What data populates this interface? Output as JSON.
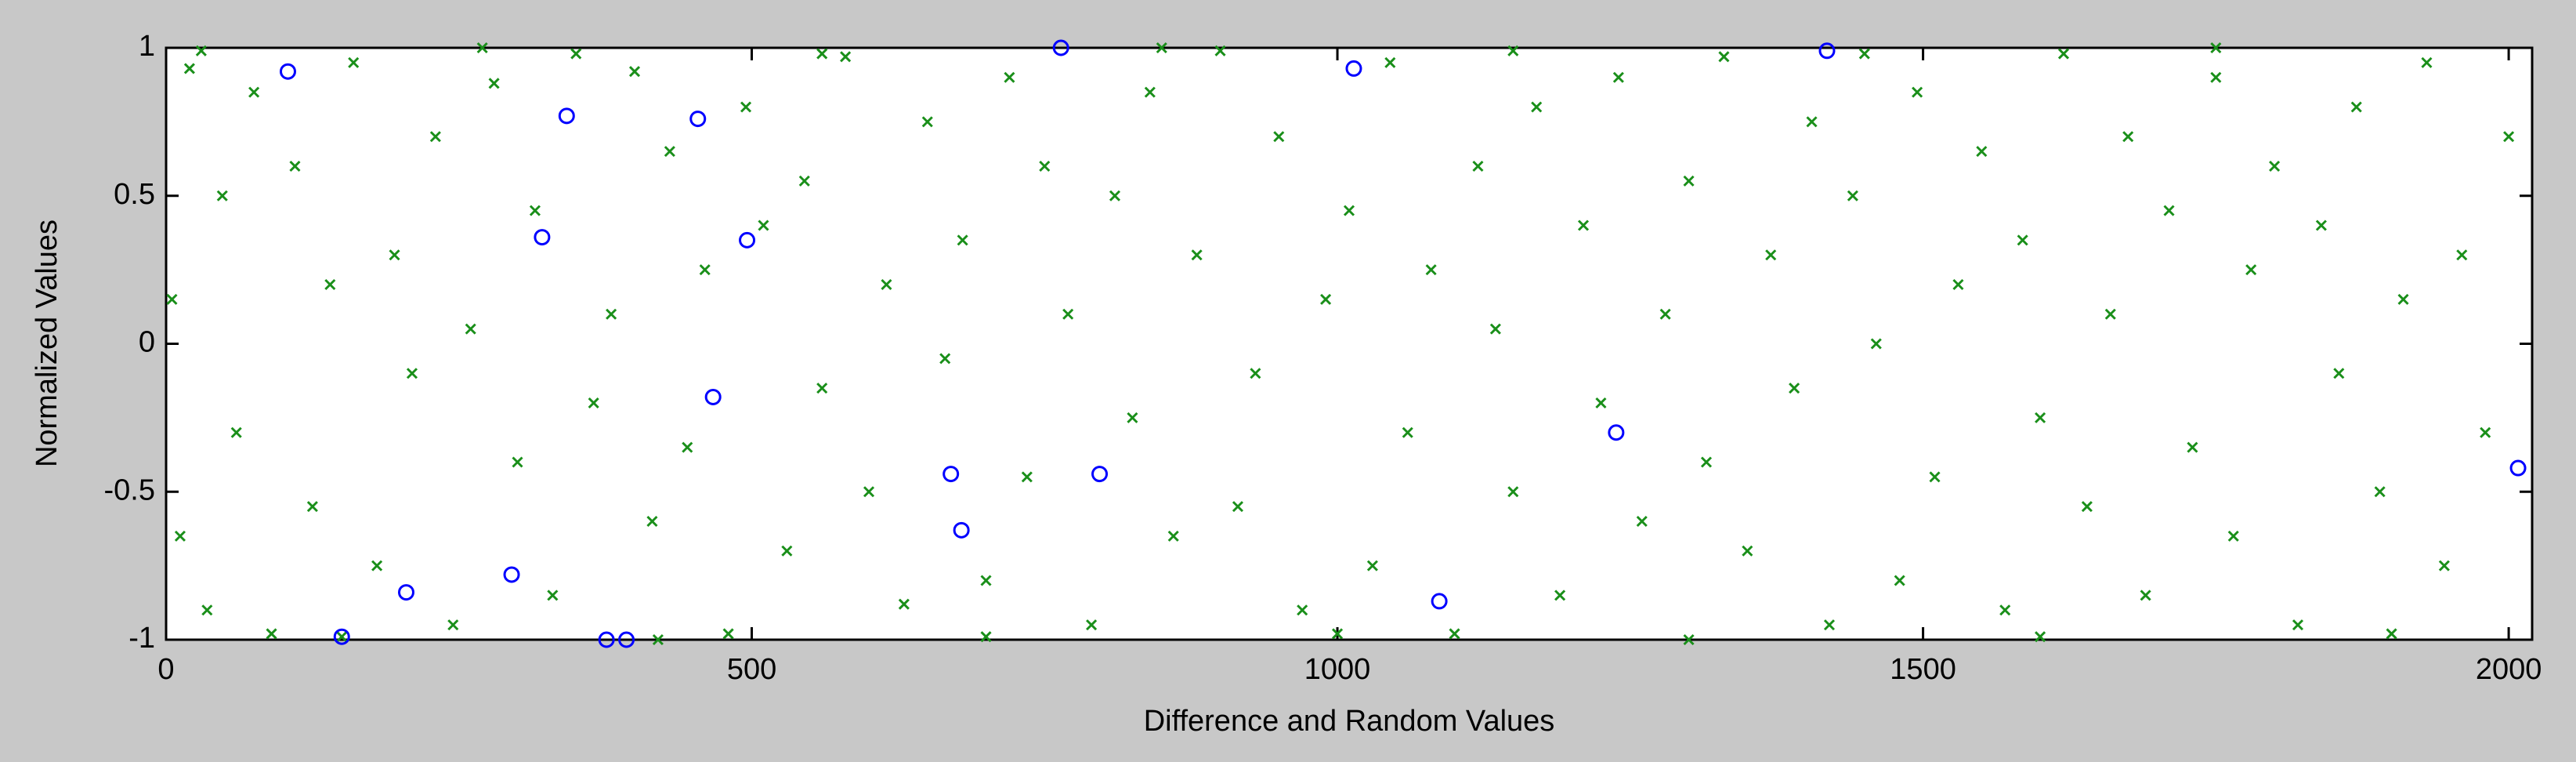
{
  "chart_data": {
    "type": "scatter",
    "xlabel": "Difference and Random Values",
    "ylabel": "Normalized Values",
    "xlim": [
      0,
      2020
    ],
    "ylim": [
      -1,
      1
    ],
    "xticks": [
      0,
      500,
      1000,
      1500,
      2000
    ],
    "yticks": [
      -1,
      -0.5,
      0,
      0.5,
      1
    ],
    "grid": false,
    "series": [
      {
        "color": "#1a8f1a",
        "marker": "x",
        "x": [
          5,
          12,
          20,
          35,
          48,
          60,
          75,
          90,
          110,
          125,
          140,
          160,
          180,
          195,
          210,
          230,
          245,
          260,
          280,
          300,
          315,
          330,
          350,
          365,
          380,
          400,
          415,
          430,
          445,
          460,
          480,
          495,
          510,
          530,
          545,
          560,
          580,
          600,
          615,
          630,
          650,
          665,
          680,
          700,
          720,
          735,
          750,
          770,
          790,
          810,
          825,
          840,
          860,
          880,
          900,
          915,
          930,
          950,
          970,
          990,
          1010,
          1030,
          1045,
          1060,
          1080,
          1100,
          1120,
          1135,
          1150,
          1170,
          1190,
          1210,
          1225,
          1240,
          1260,
          1280,
          1300,
          1315,
          1330,
          1350,
          1370,
          1390,
          1405,
          1420,
          1440,
          1460,
          1480,
          1495,
          1510,
          1530,
          1550,
          1570,
          1585,
          1600,
          1620,
          1640,
          1660,
          1675,
          1690,
          1710,
          1730,
          1750,
          1765,
          1780,
          1800,
          1820,
          1840,
          1855,
          1870,
          1890,
          1910,
          1930,
          1945,
          1960,
          1980,
          2000,
          30,
          150,
          270,
          420,
          560,
          700,
          850,
          1000,
          1150,
          1300,
          1450,
          1600,
          1750,
          1900
        ],
        "values": [
          0.15,
          -0.65,
          0.93,
          -0.9,
          0.5,
          -0.3,
          0.85,
          -0.98,
          0.6,
          -0.55,
          0.2,
          0.95,
          -0.75,
          0.3,
          -0.1,
          0.7,
          -0.95,
          0.05,
          0.88,
          -0.4,
          0.45,
          -0.85,
          0.98,
          -0.2,
          0.1,
          0.92,
          -0.6,
          0.65,
          -0.35,
          0.25,
          -0.98,
          0.8,
          0.4,
          -0.7,
          0.55,
          -0.15,
          0.97,
          -0.5,
          0.2,
          -0.88,
          0.75,
          -0.05,
          0.35,
          -0.8,
          0.9,
          -0.45,
          0.6,
          0.1,
          -0.95,
          0.5,
          -0.25,
          0.85,
          -0.65,
          0.3,
          0.99,
          -0.55,
          -0.1,
          0.7,
          -0.9,
          0.15,
          0.45,
          -0.75,
          0.95,
          -0.3,
          0.25,
          -0.98,
          0.6,
          0.05,
          -0.5,
          0.8,
          -0.85,
          0.4,
          -0.2,
          0.9,
          -0.6,
          0.1,
          0.55,
          -0.4,
          0.97,
          -0.7,
          0.3,
          -0.15,
          0.75,
          -0.95,
          0.5,
          0.0,
          -0.8,
          0.85,
          -0.45,
          0.2,
          0.65,
          -0.9,
          0.35,
          -0.25,
          0.98,
          -0.55,
          0.1,
          0.7,
          -0.85,
          0.45,
          -0.35,
          0.9,
          -0.65,
          0.25,
          0.6,
          -0.95,
          0.4,
          -0.1,
          0.8,
          -0.5,
          0.15,
          0.95,
          -0.75,
          0.3,
          -0.3,
          0.7,
          0.99,
          -0.99,
          1,
          -1,
          0.98,
          -0.99,
          1,
          -0.98,
          0.99,
          -1,
          0.98,
          -0.99,
          1,
          -0.98
        ]
      },
      {
        "color": "#0000ff",
        "marker": "o",
        "x": [
          104,
          150,
          205,
          295,
          321,
          342,
          376,
          393,
          454,
          467,
          496,
          670,
          679,
          764,
          797,
          1014,
          1087,
          1238,
          1418,
          2008
        ],
        "values": [
          0.92,
          -0.99,
          -0.84,
          -0.78,
          0.36,
          0.77,
          -1,
          -1,
          0.76,
          -0.18,
          0.35,
          -0.44,
          -0.63,
          1,
          -0.44,
          0.93,
          -0.87,
          -0.3,
          0.99,
          -0.42
        ]
      }
    ]
  }
}
